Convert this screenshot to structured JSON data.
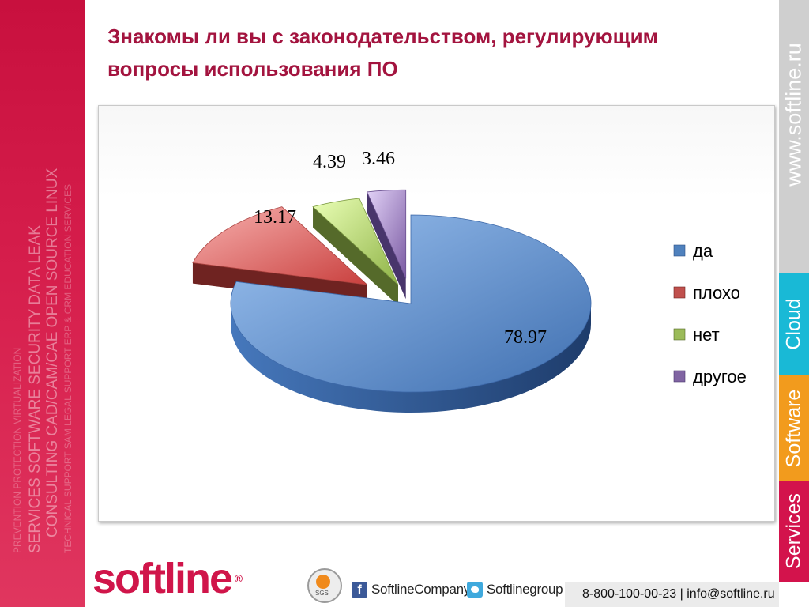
{
  "slide": {
    "title_line1": "Знакомы ли вы с законодательством, регулирующим",
    "title_line2": "вопросы использования ПО"
  },
  "colors": {
    "brand": "#c8103e",
    "title": "#a3143f",
    "cloud": "#19b9d6",
    "software": "#f29b1d",
    "services": "#d3134c"
  },
  "left_band": {
    "lines": [
      "SERVICES  SOFTWARE  SECURITY  DATA LEAK",
      "CONSULTING  CAD/CAM/CAE  OPEN SOURCE  LINUX",
      "TECHNICAL SUPPORT  SAM  LEGAL SUPPORT  ERP & CRM  EDUCATION  SERVICES",
      "PREVENTION  PROTECTION  VIRTUALIZATION"
    ]
  },
  "right_tabs": {
    "site": "www.softline.ru",
    "cloud": "Cloud",
    "software": "Software",
    "services": "Services"
  },
  "chart_data": {
    "type": "pie",
    "style": "3d-exploded",
    "categories": [
      "да",
      "плохо",
      "нет",
      "другое"
    ],
    "values": [
      78.97,
      13.17,
      4.39,
      3.46
    ],
    "value_labels": [
      "78.97",
      "13.17",
      "4.39",
      "3.46"
    ],
    "colors": [
      "#4f81bd",
      "#c0504d",
      "#9bbb59",
      "#8064a2"
    ],
    "legend_position": "right",
    "title": ""
  },
  "footer": {
    "logo_text": "softline",
    "logo_reg": "®",
    "fb_icon": "f",
    "facebook": "SoftlineCompany",
    "twitter": "Softlinegroup",
    "contacts": "8-800-100-00-23 | info@softline.ru",
    "badge_text": "SGS"
  }
}
